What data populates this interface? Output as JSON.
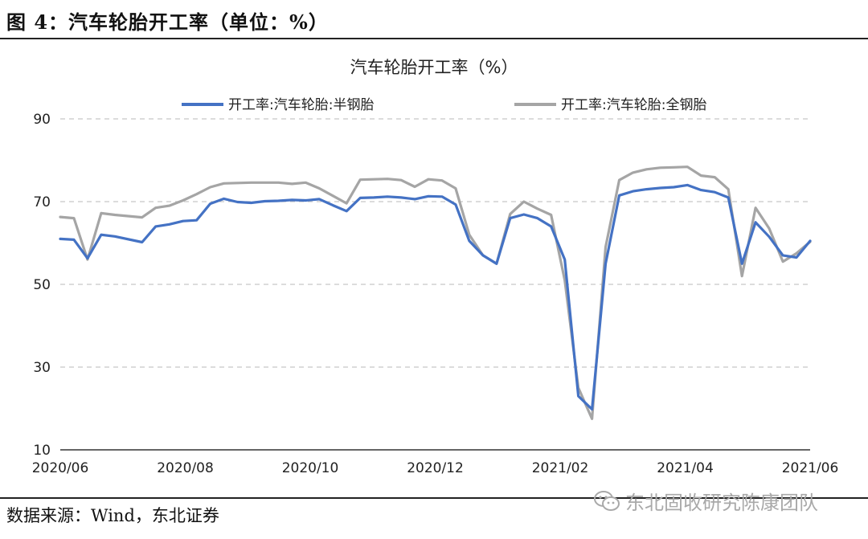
{
  "header": {
    "figure_title": "图 4：汽车轮胎开工率（单位：%）"
  },
  "footer": {
    "source": "数据来源：Wind，东北证券"
  },
  "watermark": {
    "text": "东北固收研究陈康团队",
    "icon": "wechat-icon"
  },
  "colors": {
    "semi_steel": "#4472c4",
    "all_steel": "#a5a5a5",
    "grid": "#c8c8c8"
  },
  "chart_data": {
    "type": "line",
    "title": "汽车轮胎开工率（%）",
    "xlabel": "",
    "ylabel": "",
    "ylim": [
      10,
      90
    ],
    "yticks": [
      10,
      30,
      50,
      70,
      90
    ],
    "grid": true,
    "legend": "top-center",
    "x_tick_labels": [
      "2020/06",
      "2020/08",
      "2020/10",
      "2020/12",
      "2021/02",
      "2021/04",
      "2021/06"
    ],
    "x_range": [
      "2020-06-05",
      "2021-06-25"
    ],
    "series": [
      {
        "name": "开工率:汽车轮胎:半钢胎",
        "points": [
          [
            "2020-06-05",
            61.0
          ],
          [
            "2020-06-12",
            60.8
          ],
          [
            "2020-06-19",
            56.3
          ],
          [
            "2020-06-26",
            62.0
          ],
          [
            "2020-07-03",
            61.6
          ],
          [
            "2020-07-17",
            60.2
          ],
          [
            "2020-07-24",
            64.0
          ],
          [
            "2020-07-31",
            64.5
          ],
          [
            "2020-08-07",
            65.3
          ],
          [
            "2020-08-14",
            65.5
          ],
          [
            "2020-08-21",
            69.5
          ],
          [
            "2020-08-28",
            70.7
          ],
          [
            "2020-09-04",
            69.9
          ],
          [
            "2020-09-11",
            69.7
          ],
          [
            "2020-09-18",
            70.1
          ],
          [
            "2020-09-25",
            70.2
          ],
          [
            "2020-10-02",
            70.4
          ],
          [
            "2020-10-09",
            70.3
          ],
          [
            "2020-10-16",
            70.6
          ],
          [
            "2020-10-23",
            69.1
          ],
          [
            "2020-10-30",
            67.7
          ],
          [
            "2020-11-06",
            70.9
          ],
          [
            "2020-11-13",
            71.0
          ],
          [
            "2020-11-20",
            71.2
          ],
          [
            "2020-11-27",
            71.0
          ],
          [
            "2020-12-04",
            70.6
          ],
          [
            "2020-12-11",
            71.3
          ],
          [
            "2020-12-18",
            71.2
          ],
          [
            "2020-12-25",
            69.3
          ],
          [
            "2021-01-01",
            60.5
          ],
          [
            "2021-01-08",
            57.0
          ],
          [
            "2021-01-15",
            55.0
          ],
          [
            "2021-01-22",
            66.0
          ],
          [
            "2021-01-29",
            66.9
          ],
          [
            "2021-02-05",
            66.0
          ],
          [
            "2021-02-12",
            64.0
          ],
          [
            "2021-02-19",
            56.0
          ],
          [
            "2021-02-26",
            23.0
          ],
          [
            "2021-03-05",
            19.8
          ],
          [
            "2021-03-12",
            55.0
          ],
          [
            "2021-03-19",
            71.5
          ],
          [
            "2021-03-26",
            72.5
          ],
          [
            "2021-04-02",
            73.0
          ],
          [
            "2021-04-09",
            73.3
          ],
          [
            "2021-04-16",
            73.5
          ],
          [
            "2021-04-23",
            74.0
          ],
          [
            "2021-04-30",
            72.8
          ],
          [
            "2021-05-07",
            72.3
          ],
          [
            "2021-05-14",
            71.0
          ],
          [
            "2021-05-21",
            55.0
          ],
          [
            "2021-05-28",
            65.0
          ],
          [
            "2021-06-04",
            61.5
          ],
          [
            "2021-06-11",
            57.0
          ],
          [
            "2021-06-18",
            56.5
          ],
          [
            "2021-06-25",
            60.5
          ]
        ]
      },
      {
        "name": "开工率:汽车轮胎:全钢胎",
        "points": [
          [
            "2020-06-05",
            66.3
          ],
          [
            "2020-06-12",
            66.0
          ],
          [
            "2020-06-19",
            56.0
          ],
          [
            "2020-06-26",
            67.2
          ],
          [
            "2020-07-03",
            66.8
          ],
          [
            "2020-07-17",
            66.2
          ],
          [
            "2020-07-24",
            68.5
          ],
          [
            "2020-07-31",
            69.0
          ],
          [
            "2020-08-07",
            70.3
          ],
          [
            "2020-08-14",
            71.8
          ],
          [
            "2020-08-21",
            73.5
          ],
          [
            "2020-08-28",
            74.4
          ],
          [
            "2020-09-04",
            74.5
          ],
          [
            "2020-09-11",
            74.6
          ],
          [
            "2020-09-18",
            74.6
          ],
          [
            "2020-09-25",
            74.6
          ],
          [
            "2020-10-02",
            74.3
          ],
          [
            "2020-10-09",
            74.6
          ],
          [
            "2020-10-16",
            73.2
          ],
          [
            "2020-10-23",
            71.4
          ],
          [
            "2020-10-30",
            69.6
          ],
          [
            "2020-11-06",
            75.3
          ],
          [
            "2020-11-13",
            75.4
          ],
          [
            "2020-11-20",
            75.5
          ],
          [
            "2020-11-27",
            75.2
          ],
          [
            "2020-12-04",
            73.6
          ],
          [
            "2020-12-11",
            75.4
          ],
          [
            "2020-12-18",
            75.1
          ],
          [
            "2020-12-25",
            73.2
          ],
          [
            "2021-01-01",
            62.0
          ],
          [
            "2021-01-08",
            57.0
          ],
          [
            "2021-01-15",
            55.0
          ],
          [
            "2021-01-22",
            67.0
          ],
          [
            "2021-01-29",
            70.0
          ],
          [
            "2021-02-05",
            68.3
          ],
          [
            "2021-02-12",
            66.8
          ],
          [
            "2021-02-19",
            51.0
          ],
          [
            "2021-02-26",
            25.0
          ],
          [
            "2021-03-05",
            17.5
          ],
          [
            "2021-03-12",
            59.0
          ],
          [
            "2021-03-19",
            75.2
          ],
          [
            "2021-03-26",
            77.0
          ],
          [
            "2021-04-02",
            77.8
          ],
          [
            "2021-04-09",
            78.2
          ],
          [
            "2021-04-16",
            78.3
          ],
          [
            "2021-04-23",
            78.4
          ],
          [
            "2021-04-30",
            76.3
          ],
          [
            "2021-05-07",
            75.9
          ],
          [
            "2021-05-14",
            73.0
          ],
          [
            "2021-05-21",
            52.0
          ],
          [
            "2021-05-28",
            68.5
          ],
          [
            "2021-06-04",
            63.5
          ],
          [
            "2021-06-11",
            55.5
          ],
          [
            "2021-06-18",
            57.5
          ],
          [
            "2021-06-25",
            60.3
          ]
        ]
      }
    ]
  }
}
